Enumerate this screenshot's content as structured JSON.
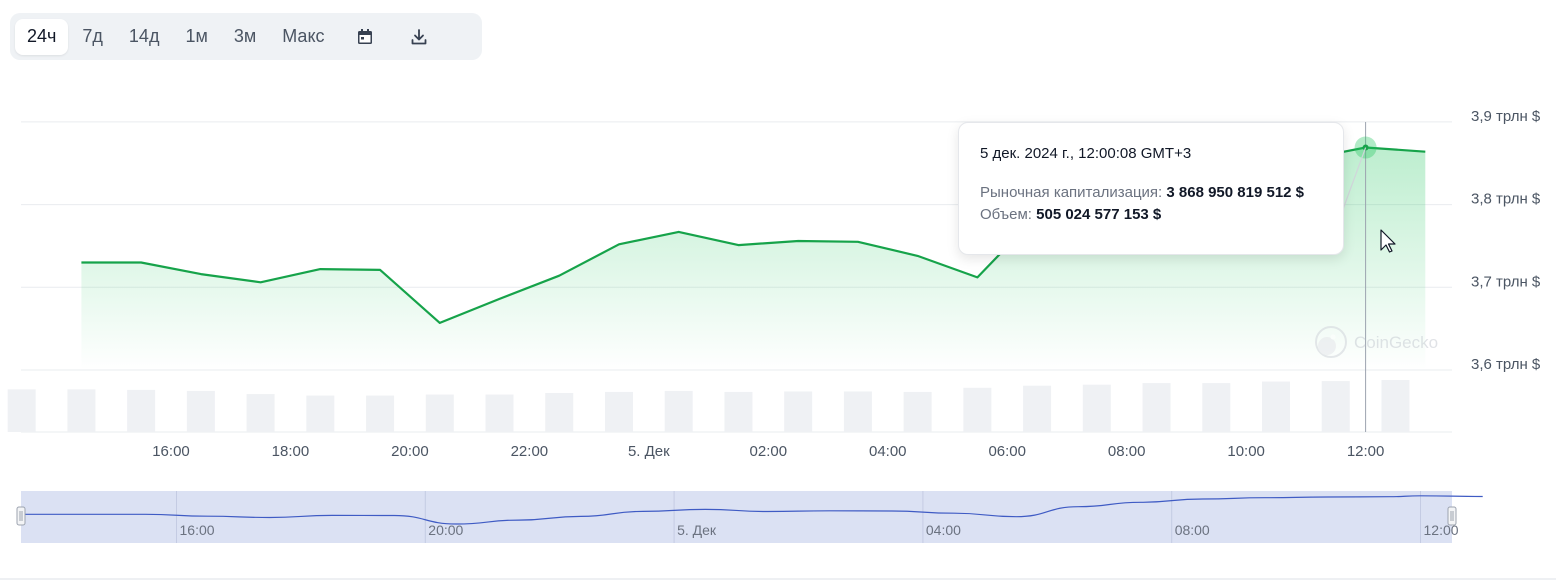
{
  "toolbar": {
    "ranges": [
      "24ч",
      "7д",
      "14д",
      "1м",
      "3м",
      "Макс"
    ],
    "active": "24ч",
    "icons": [
      "calendar-icon",
      "download-icon"
    ]
  },
  "tooltip": {
    "date": "5 дек. 2024 г., 12:00:08 GMT+3",
    "cap_label": "Рыночная капитализация:",
    "cap_value": "3 868 950 819 512 $",
    "vol_label": "Объем:",
    "vol_value": "505 024 577 153 $"
  },
  "watermark": "CoinGecko",
  "colors": {
    "line": "#16a34a",
    "area": "#22c55e",
    "volume": "#eff1f4",
    "navigator": "#dbe1f3",
    "navigator_line": "#3f5bc4"
  },
  "chart_data": {
    "type": "line",
    "y_axis": {
      "ticks": [
        3.6,
        3.7,
        3.8,
        3.9
      ],
      "tick_labels": [
        "3,6 трлн $",
        "3,7 трлн $",
        "3,8 трлн $",
        "3,9 трлн $"
      ]
    },
    "x_axis": {
      "tick_hours": [
        16,
        18,
        20,
        22,
        24,
        26,
        28,
        30,
        32,
        34,
        36
      ],
      "tick_labels": [
        "16:00",
        "18:00",
        "20:00",
        "22:00",
        "5. Дек",
        "02:00",
        "04:00",
        "06:00",
        "08:00",
        "10:00",
        "12:00"
      ]
    },
    "series": [
      {
        "metric": "market_cap_trln_usd",
        "x_hours": [
          14.5,
          15.5,
          16.5,
          17.5,
          18.5,
          19.5,
          20.5,
          21.5,
          22.5,
          23.5,
          24.5,
          25.5,
          26.5,
          27.5,
          28.5,
          29.5,
          30.5,
          31.5,
          32.5,
          33.5,
          34.5,
          35.5,
          36,
          37
        ],
        "values": [
          3.73,
          3.73,
          3.716,
          3.706,
          3.722,
          3.721,
          3.657,
          3.686,
          3.714,
          3.752,
          3.767,
          3.751,
          3.756,
          3.755,
          3.738,
          3.712,
          3.787,
          3.82,
          3.845,
          3.855,
          3.86,
          3.862,
          3.869,
          3.864
        ]
      },
      {
        "metric": "volume_rel",
        "x_hours": [
          13.5,
          14.5,
          15.5,
          16.5,
          17.5,
          18.5,
          19.5,
          20.5,
          21.5,
          22.5,
          23.5,
          24.5,
          25.5,
          26.5,
          27.5,
          28.5,
          29.5,
          30.5,
          31.5,
          32.5,
          33.5,
          34.5,
          35.5,
          36.5
        ],
        "values": [
          0.82,
          0.82,
          0.81,
          0.79,
          0.73,
          0.7,
          0.7,
          0.72,
          0.72,
          0.75,
          0.77,
          0.79,
          0.77,
          0.78,
          0.78,
          0.77,
          0.85,
          0.89,
          0.91,
          0.94,
          0.94,
          0.97,
          0.98,
          1.0
        ]
      }
    ],
    "hover_hour": 36
  },
  "navigator": {
    "tick_hours": [
      16,
      20,
      24,
      28,
      32,
      36
    ],
    "tick_labels": [
      "16:00",
      "20:00",
      "5. Дек",
      "04:00",
      "08:00",
      "12:00"
    ]
  }
}
